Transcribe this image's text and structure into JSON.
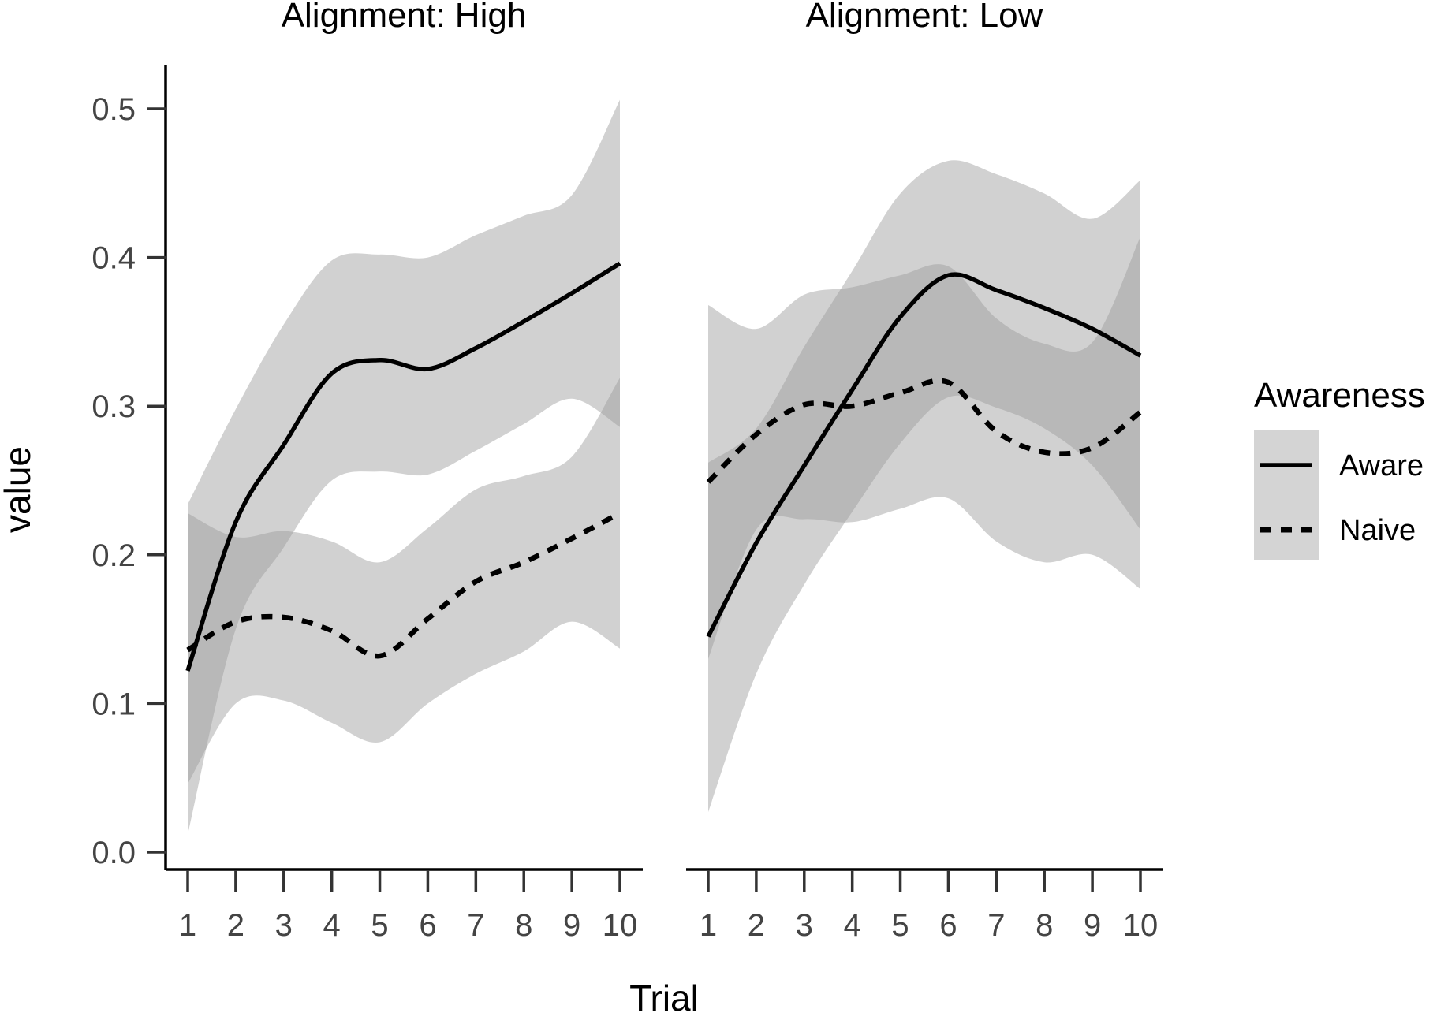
{
  "chart_data": {
    "type": "line",
    "xlabel": "Trial",
    "ylabel": "value",
    "x": [
      1,
      2,
      3,
      4,
      5,
      6,
      7,
      8,
      9,
      10
    ],
    "xlim": [
      0.7,
      10.3
    ],
    "ylim": [
      -0.01,
      0.52
    ],
    "y_ticks": [
      0.0,
      0.1,
      0.2,
      0.3,
      0.4,
      0.5
    ],
    "y_tick_labels": [
      "0.0",
      "0.1",
      "0.2",
      "0.3",
      "0.4",
      "0.5"
    ],
    "x_tick_labels": [
      "1",
      "2",
      "3",
      "4",
      "5",
      "6",
      "7",
      "8",
      "9",
      "10"
    ],
    "grid": false,
    "legend": {
      "title": "Awareness",
      "position": "right",
      "entries": [
        {
          "name": "Aware",
          "linetype": "solid"
        },
        {
          "name": "Naive",
          "linetype": "dashed"
        }
      ]
    },
    "colors": {
      "line": "#000000",
      "ribbon": "#999999",
      "legend_key_bg": "#d4d4d4"
    },
    "panels": [
      {
        "title": "Alignment: High",
        "series": [
          {
            "name": "Aware",
            "linetype": "solid",
            "values": [
              0.122,
              0.222,
              0.274,
              0.322,
              0.331,
              0.325,
              0.339,
              0.357,
              0.376,
              0.396
            ],
            "lower": [
              0.012,
              0.15,
              0.205,
              0.25,
              0.256,
              0.254,
              0.27,
              0.288,
              0.305,
              0.286
            ],
            "upper": [
              0.234,
              0.298,
              0.355,
              0.398,
              0.402,
              0.4,
              0.415,
              0.428,
              0.442,
              0.506
            ]
          },
          {
            "name": "Naive",
            "linetype": "dashed",
            "values": [
              0.136,
              0.155,
              0.158,
              0.149,
              0.132,
              0.157,
              0.182,
              0.195,
              0.211,
              0.228
            ],
            "lower": [
              0.046,
              0.1,
              0.102,
              0.087,
              0.074,
              0.1,
              0.12,
              0.135,
              0.155,
              0.137
            ],
            "upper": [
              0.228,
              0.212,
              0.216,
              0.209,
              0.195,
              0.218,
              0.244,
              0.253,
              0.266,
              0.319
            ]
          }
        ]
      },
      {
        "title": "Alignment: Low",
        "series": [
          {
            "name": "Aware",
            "linetype": "solid",
            "values": [
              0.145,
              0.208,
              0.26,
              0.311,
              0.36,
              0.388,
              0.378,
              0.366,
              0.352,
              0.334
            ],
            "lower": [
              0.027,
              0.12,
              0.18,
              0.229,
              0.275,
              0.306,
              0.299,
              0.285,
              0.26,
              0.217
            ],
            "upper": [
              0.262,
              0.285,
              0.34,
              0.391,
              0.443,
              0.465,
              0.456,
              0.443,
              0.426,
              0.452
            ]
          },
          {
            "name": "Naive",
            "linetype": "dashed",
            "values": [
              0.249,
              0.281,
              0.301,
              0.3,
              0.309,
              0.316,
              0.283,
              0.269,
              0.272,
              0.296
            ],
            "lower": [
              0.13,
              0.217,
              0.224,
              0.222,
              0.231,
              0.238,
              0.209,
              0.195,
              0.2,
              0.177
            ],
            "upper": [
              0.368,
              0.352,
              0.375,
              0.38,
              0.388,
              0.394,
              0.359,
              0.342,
              0.343,
              0.414
            ]
          }
        ]
      }
    ]
  }
}
